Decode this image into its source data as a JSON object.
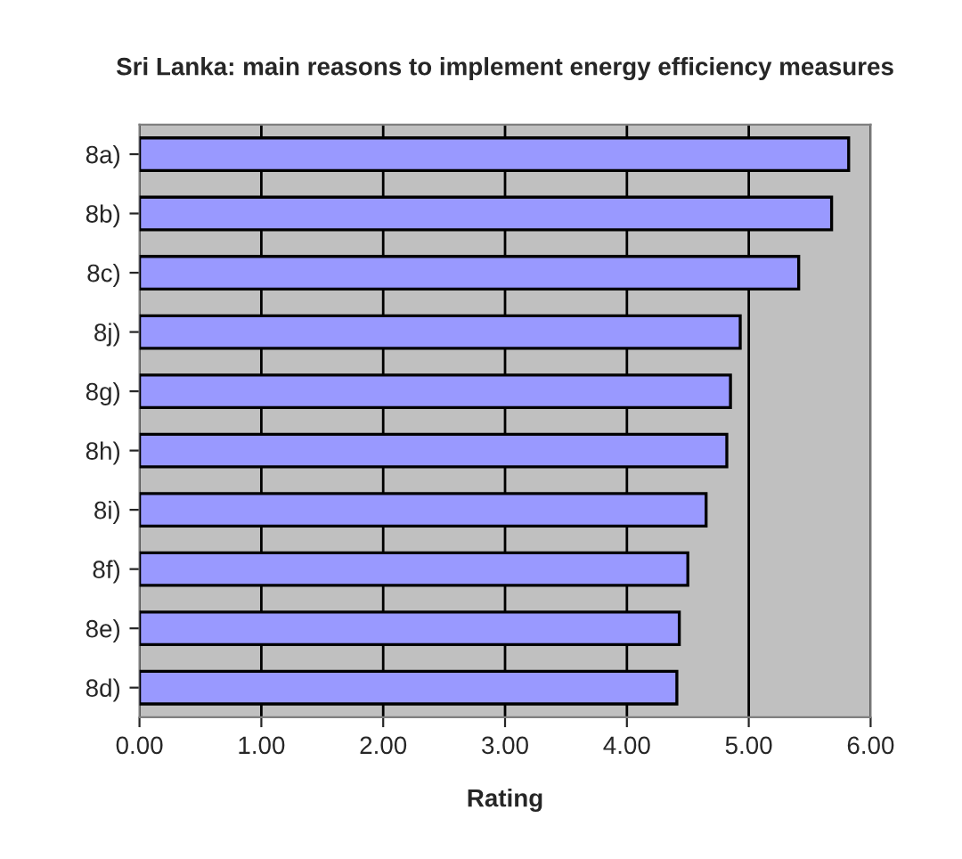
{
  "chart_data": {
    "type": "bar",
    "orientation": "horizontal",
    "title": "Sri Lanka: main reasons to implement energy efficiency measures",
    "xlabel": "Rating",
    "categories": [
      "8a)",
      "8b)",
      "8c)",
      "8j)",
      "8g)",
      "8h)",
      "8i)",
      "8f)",
      "8e)",
      "8d)"
    ],
    "values": [
      5.82,
      5.68,
      5.41,
      4.93,
      4.85,
      4.82,
      4.65,
      4.5,
      4.43,
      4.41
    ],
    "color": "#9999ff",
    "xlim": [
      0,
      6
    ],
    "xticks": [
      {
        "value": 0,
        "label": "0.00"
      },
      {
        "value": 1,
        "label": "1.00"
      },
      {
        "value": 2,
        "label": "2.00"
      },
      {
        "value": 3,
        "label": "3.00"
      },
      {
        "value": 4,
        "label": "4.00"
      },
      {
        "value": 5,
        "label": "5.00"
      },
      {
        "value": 6,
        "label": "6.00"
      }
    ],
    "grid": "x"
  }
}
